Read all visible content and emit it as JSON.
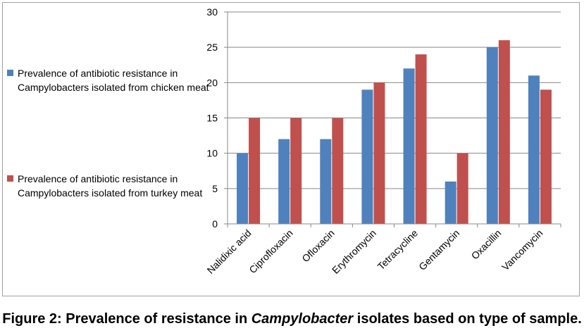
{
  "chart_data": {
    "type": "bar",
    "categories": [
      "Nalidixic acid",
      "Ciprofloxacin",
      "Ofloxacin",
      "Erythromycin",
      "Tetracycline",
      "Gentamycin",
      "Oxacillin",
      "Vancomycin"
    ],
    "series": [
      {
        "name": "Prevalence of antibiotic resistance in Campylobacters isolated from chicken meat",
        "color": "#4f81bd",
        "values": [
          10,
          12,
          12,
          19,
          22,
          6,
          25,
          21
        ]
      },
      {
        "name": "Prevalence of antibiotic resistance in Campylobacters isolated from turkey meat",
        "color": "#c0504d",
        "values": [
          15,
          15,
          15,
          20,
          24,
          10,
          26,
          19
        ]
      }
    ],
    "ylim": [
      0,
      30
    ],
    "yticks": [
      0,
      5,
      10,
      15,
      20,
      25,
      30
    ],
    "grid": true,
    "legend_position": "left"
  },
  "caption": {
    "prefix": "Figure 2: Prevalence of resistance in ",
    "italic": "Campylobacter",
    "suffix": " isolates based on type of sample."
  }
}
